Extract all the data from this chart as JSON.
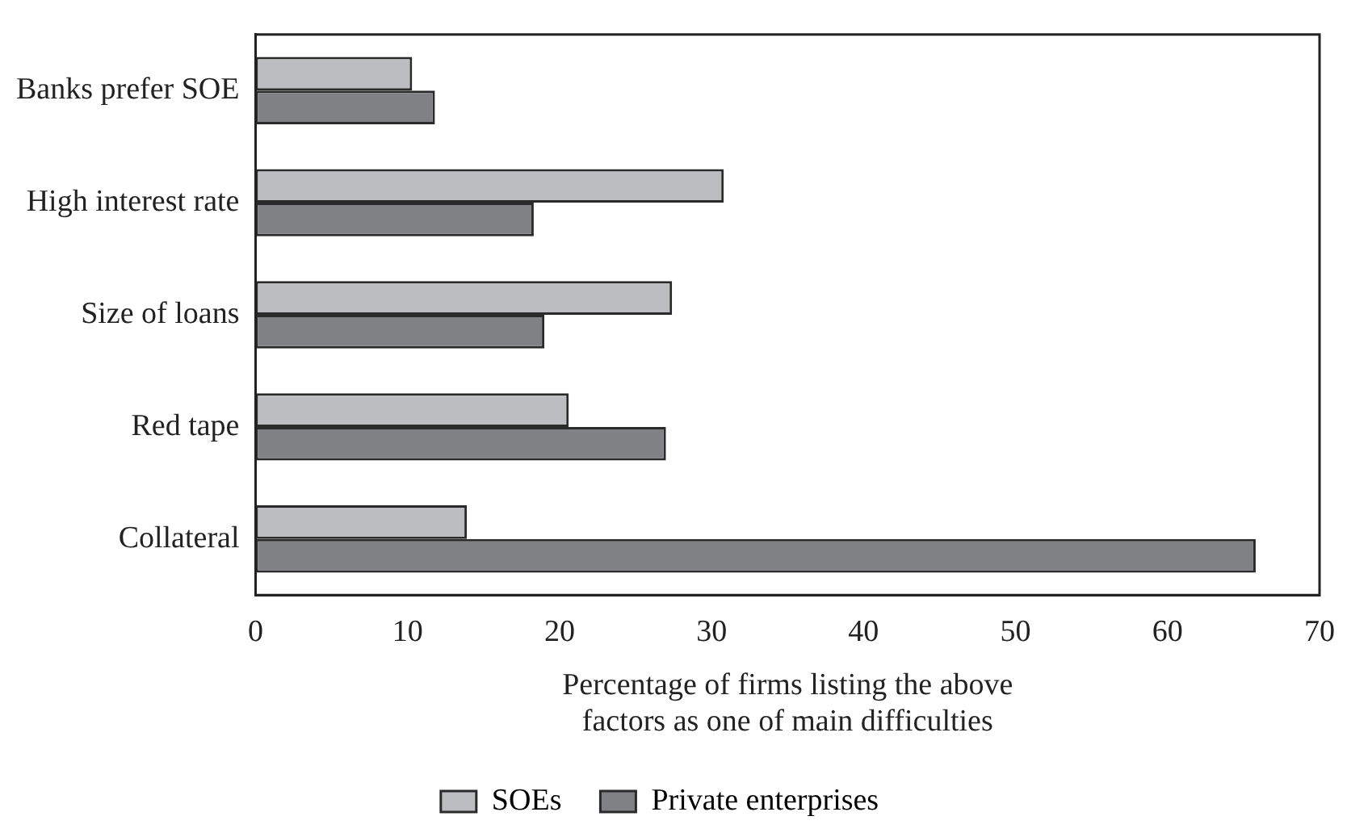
{
  "chart_data": {
    "type": "bar",
    "orientation": "horizontal",
    "categories": [
      "Banks prefer SOE",
      "High interest rate",
      "Size of loans",
      "Red tape",
      "Collateral"
    ],
    "series": [
      {
        "name": "SOEs",
        "color": "#bcbdc0",
        "values": [
          10.3,
          30.8,
          27.4,
          20.6,
          13.9
        ]
      },
      {
        "name": "Private enterprises",
        "color": "#808184",
        "values": [
          11.8,
          18.3,
          19.0,
          27.0,
          65.8
        ]
      }
    ],
    "xlabel": "Percentage of firms listing the above factors as one of main difficulties",
    "xlim": [
      0,
      70
    ],
    "xticks": [
      0,
      10,
      20,
      30,
      40,
      50,
      60,
      70
    ],
    "grid": false,
    "legend": "bottom"
  }
}
